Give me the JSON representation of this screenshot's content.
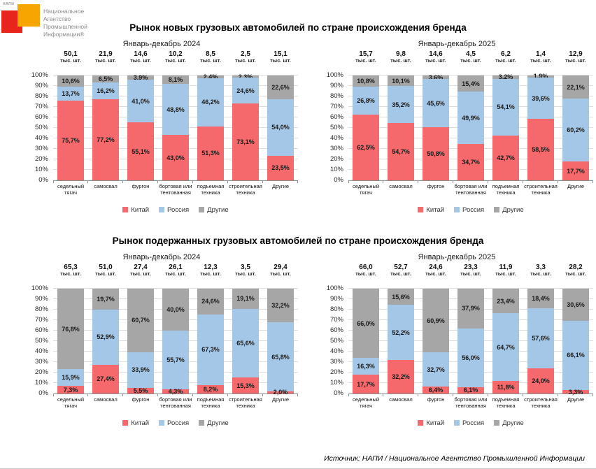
{
  "logo": {
    "mini_label": "НАПИ",
    "org_name": "Национальное\nАгентство\nПромышленной\nИнформации®"
  },
  "sections": [
    {
      "title": "Рынок новых грузовых автомобилей по стране происхождения бренда"
    },
    {
      "title": "Рынок подержанных грузовых автомобилей по стране происхождения бренда"
    }
  ],
  "source": "Источник: НАПИ / Национальное Агентство Промышленной Информации",
  "chart_data": [
    {
      "type": "bar",
      "stacked": true,
      "percent_stacked": true,
      "title": "Рынок новых грузовых автомобилей по стране происхождения бренда",
      "subtitle": "Январь-декабрь 2024",
      "categories": [
        "седельный тягач",
        "самосвал",
        "фургон",
        "бортовая или тентованная",
        "подъемная техника",
        "строительная техника",
        "Другие"
      ],
      "totals": [
        50.1,
        21.9,
        14.6,
        10.2,
        8.5,
        2.5,
        15.1
      ],
      "totals_unit": "тыс. шт.",
      "series": [
        {
          "name": "Китай",
          "slug": "china",
          "color": "#f5696c",
          "values": [
            75.7,
            77.2,
            55.1,
            43.0,
            51.3,
            73.1,
            23.5
          ]
        },
        {
          "name": "Россия",
          "slug": "russia",
          "color": "#a4c7e8",
          "values": [
            13.7,
            16.2,
            41.0,
            48.8,
            46.2,
            24.6,
            54.0
          ]
        },
        {
          "name": "Другие",
          "slug": "others",
          "color": "#a6a6a6",
          "values": [
            10.6,
            6.5,
            3.9,
            8.1,
            2.4,
            2.3,
            22.6
          ]
        }
      ],
      "ylim": [
        0,
        100
      ],
      "yticks": [
        "0%",
        "10%",
        "20%",
        "30%",
        "40%",
        "50%",
        "60%",
        "70%",
        "80%",
        "90%",
        "100%"
      ],
      "grid": true,
      "legend_position": "bottom"
    },
    {
      "type": "bar",
      "stacked": true,
      "percent_stacked": true,
      "title": "Рынок новых грузовых автомобилей по стране происхождения бренда",
      "subtitle": "Январь-декабрь 2025",
      "categories": [
        "седельный тягач",
        "самосвал",
        "фургон",
        "бортовая или тентованная",
        "подъемная техника",
        "строительная техника",
        "Другие"
      ],
      "totals": [
        15.7,
        9.8,
        14.6,
        4.5,
        6.2,
        1.4,
        12.9
      ],
      "totals_unit": "тыс. шт.",
      "series": [
        {
          "name": "Китай",
          "slug": "china",
          "color": "#f5696c",
          "values": [
            62.5,
            54.7,
            50.8,
            34.7,
            42.7,
            58.5,
            17.7
          ]
        },
        {
          "name": "Россия",
          "slug": "russia",
          "color": "#a4c7e8",
          "values": [
            26.8,
            35.2,
            45.6,
            49.9,
            54.1,
            39.6,
            60.2
          ]
        },
        {
          "name": "Другие",
          "slug": "others",
          "color": "#a6a6a6",
          "values": [
            10.8,
            10.1,
            3.6,
            15.4,
            3.2,
            1.9,
            22.1
          ]
        }
      ],
      "ylim": [
        0,
        100
      ],
      "yticks": [
        "0%",
        "10%",
        "20%",
        "30%",
        "40%",
        "50%",
        "60%",
        "70%",
        "80%",
        "90%",
        "100%"
      ],
      "grid": true,
      "legend_position": "bottom"
    },
    {
      "type": "bar",
      "stacked": true,
      "percent_stacked": true,
      "title": "Рынок подержанных грузовых автомобилей по стране происхождения бренда",
      "subtitle": "Январь-декабрь 2024",
      "categories": [
        "седельный тягач",
        "самосвал",
        "фургон",
        "бортовая или тентованная",
        "подъемная техника",
        "строительная техника",
        "Другие"
      ],
      "totals": [
        65.3,
        51.0,
        27.4,
        26.1,
        12.3,
        3.5,
        29.4
      ],
      "totals_unit": "тыс. шт.",
      "series": [
        {
          "name": "Китай",
          "slug": "china",
          "color": "#f5696c",
          "values": [
            7.3,
            27.4,
            5.5,
            4.3,
            8.2,
            15.3,
            2.0
          ]
        },
        {
          "name": "Россия",
          "slug": "russia",
          "color": "#a4c7e8",
          "values": [
            15.9,
            52.9,
            33.9,
            55.7,
            67.3,
            65.6,
            65.8
          ]
        },
        {
          "name": "Другие",
          "slug": "others",
          "color": "#a6a6a6",
          "values": [
            76.8,
            19.7,
            60.7,
            40.0,
            24.6,
            19.1,
            32.2
          ]
        }
      ],
      "ylim": [
        0,
        100
      ],
      "yticks": [
        "0%",
        "10%",
        "20%",
        "30%",
        "40%",
        "50%",
        "60%",
        "70%",
        "80%",
        "90%",
        "100%"
      ],
      "grid": true,
      "legend_position": "bottom"
    },
    {
      "type": "bar",
      "stacked": true,
      "percent_stacked": true,
      "title": "Рынок подержанных грузовых автомобилей по стране происхождения бренда",
      "subtitle": "Январь-декабрь 2025",
      "categories": [
        "седельный тягач",
        "самосвал",
        "фургон",
        "бортовая или тентованная",
        "подъемная техника",
        "строительная техника",
        "Другие"
      ],
      "totals": [
        66.0,
        52.7,
        24.6,
        23.3,
        11.9,
        3.3,
        28.2
      ],
      "totals_unit": "тыс. шт.",
      "series": [
        {
          "name": "Китай",
          "slug": "china",
          "color": "#f5696c",
          "values": [
            17.7,
            32.2,
            6.4,
            6.1,
            11.8,
            24.0,
            3.3
          ]
        },
        {
          "name": "Россия",
          "slug": "russia",
          "color": "#a4c7e8",
          "values": [
            16.3,
            52.2,
            32.7,
            56.0,
            64.7,
            57.6,
            66.1
          ]
        },
        {
          "name": "Другие",
          "slug": "others",
          "color": "#a6a6a6",
          "values": [
            66.0,
            15.6,
            60.9,
            37.9,
            23.4,
            18.4,
            30.6
          ]
        }
      ],
      "ylim": [
        0,
        100
      ],
      "yticks": [
        "0%",
        "10%",
        "20%",
        "30%",
        "40%",
        "50%",
        "60%",
        "70%",
        "80%",
        "90%",
        "100%"
      ],
      "grid": true,
      "legend_position": "bottom"
    }
  ]
}
